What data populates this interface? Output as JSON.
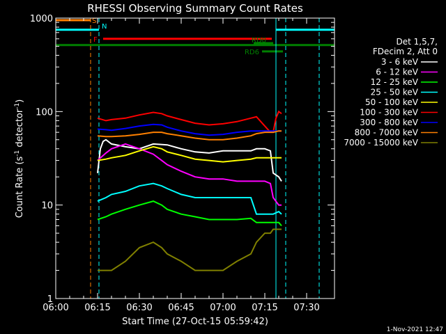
{
  "chart_data": {
    "type": "line",
    "title": "RHESSI Observing Summary Count Rates",
    "xlabel": "Start Time (27-Oct-15 05:59:42)",
    "ylabel_prefix": "Count Rate (s",
    "ylabel_sup1": "-1",
    "ylabel_mid": " detector",
    "ylabel_sup2": "-1",
    "ylabel_suffix": ")",
    "y_scale": "log",
    "ylim": [
      1,
      1000
    ],
    "xlim_minutes": [
      0,
      100
    ],
    "x_ticks": [
      {
        "m": 0,
        "label": "06:00"
      },
      {
        "m": 15,
        "label": "06:15"
      },
      {
        "m": 30,
        "label": "06:30"
      },
      {
        "m": 45,
        "label": "06:45"
      },
      {
        "m": 60,
        "label": "07:00"
      },
      {
        "m": 75,
        "label": "07:15"
      },
      {
        "m": 90,
        "label": "07:30"
      }
    ],
    "y_ticks": [
      {
        "v": 1,
        "label": "1"
      },
      {
        "v": 10,
        "label": "10"
      },
      {
        "v": 100,
        "label": "100"
      },
      {
        "v": 1000,
        "label": "1000"
      }
    ],
    "legend_header": [
      "Det 1,5,7,",
      "FDecim 2, Att 0"
    ],
    "legend_position": "right",
    "series": [
      {
        "name": "3 - 6 keV",
        "color": "#ffffff",
        "x": [
          15,
          16,
          17,
          18,
          20,
          25,
          30,
          35,
          40,
          45,
          50,
          55,
          60,
          65,
          70,
          72,
          75,
          77,
          78,
          80,
          81
        ],
        "y": [
          22,
          40,
          48,
          50,
          45,
          42,
          40,
          45,
          44,
          40,
          37,
          36,
          38,
          38,
          38,
          40,
          40,
          38,
          22,
          20,
          18
        ]
      },
      {
        "name": "6 - 12 keV",
        "color": "#ff00ff",
        "x": [
          15,
          18,
          20,
          25,
          30,
          35,
          38,
          40,
          45,
          50,
          55,
          60,
          65,
          70,
          72,
          75,
          77,
          78,
          80,
          81
        ],
        "y": [
          30,
          36,
          40,
          45,
          40,
          35,
          30,
          27,
          23,
          20,
          19,
          19,
          18,
          18,
          18,
          18,
          17,
          12,
          10,
          10
        ]
      },
      {
        "name": "12 - 25 keV",
        "color": "#00ff00",
        "x": [
          15,
          18,
          20,
          25,
          30,
          35,
          38,
          40,
          45,
          50,
          55,
          60,
          65,
          70,
          72,
          75,
          77,
          78,
          80,
          81
        ],
        "y": [
          7,
          7.5,
          8,
          9,
          10,
          11,
          10,
          9,
          8,
          7.5,
          7,
          7,
          7,
          7.2,
          6.5,
          6.5,
          6.5,
          6.5,
          6.5,
          6
        ]
      },
      {
        "name": "25 - 50 keV",
        "color": "#00ffff",
        "x": [
          15,
          18,
          20,
          25,
          30,
          35,
          38,
          40,
          45,
          50,
          55,
          60,
          65,
          70,
          72,
          75,
          77,
          78,
          80,
          81
        ],
        "y": [
          11,
          12,
          13,
          14,
          16,
          17,
          16,
          15,
          13,
          12,
          12,
          12,
          12,
          12,
          8,
          8,
          8,
          8,
          8.5,
          8
        ]
      },
      {
        "name": "50 - 100 keV",
        "color": "#ffff00",
        "x": [
          15,
          18,
          20,
          25,
          30,
          35,
          38,
          40,
          45,
          50,
          55,
          60,
          65,
          70,
          72,
          75,
          77,
          78,
          80,
          81
        ],
        "y": [
          30,
          31,
          32,
          34,
          38,
          42,
          40,
          37,
          34,
          31,
          30,
          29,
          30,
          31,
          32,
          32,
          32,
          32,
          32,
          32
        ]
      },
      {
        "name": "100 - 300 keV",
        "color": "#ff0000",
        "x": [
          15,
          18,
          20,
          25,
          30,
          35,
          38,
          40,
          45,
          50,
          55,
          60,
          65,
          70,
          72,
          77,
          78,
          79,
          80,
          81
        ],
        "y": [
          85,
          80,
          82,
          85,
          92,
          98,
          95,
          90,
          82,
          75,
          72,
          74,
          78,
          85,
          88,
          60,
          60,
          85,
          100,
          95
        ]
      },
      {
        "name": "300 - 800 keV",
        "color": "#0000ff",
        "x": [
          15,
          18,
          20,
          25,
          30,
          35,
          38,
          40,
          45,
          50,
          55,
          60,
          65,
          70,
          72,
          75,
          77,
          78,
          80,
          81
        ],
        "y": [
          65,
          64,
          63,
          66,
          70,
          73,
          72,
          68,
          62,
          58,
          56,
          57,
          60,
          62,
          62,
          62,
          62,
          62,
          62,
          62
        ]
      },
      {
        "name": "800 - 7000 keV",
        "color": "#ff8000",
        "x": [
          15,
          18,
          20,
          25,
          30,
          35,
          38,
          40,
          45,
          50,
          55,
          60,
          65,
          70,
          72,
          75,
          77,
          78,
          80,
          81
        ],
        "y": [
          55,
          54,
          54,
          55,
          57,
          60,
          60,
          58,
          55,
          52,
          50,
          50,
          52,
          55,
          58,
          60,
          60,
          60,
          62,
          62
        ]
      },
      {
        "name": "7000 - 15000 keV",
        "color": "#808000",
        "x": [
          15,
          18,
          20,
          25,
          30,
          35,
          38,
          40,
          45,
          50,
          55,
          60,
          65,
          70,
          72,
          75,
          77,
          78,
          80,
          81
        ],
        "y": [
          2,
          2,
          2,
          2.5,
          3.5,
          4,
          3.5,
          3,
          2.5,
          2,
          2,
          2,
          2.5,
          3,
          4,
          5,
          5,
          5.5,
          5.5,
          5.5
        ]
      }
    ],
    "vertical_lines": [
      {
        "m": 12.5,
        "color": "#ff8000",
        "style": "dashed"
      },
      {
        "m": 15.5,
        "color": "#00ffff",
        "style": "dashed"
      },
      {
        "m": 0,
        "color": "#00ffff",
        "style": "solid"
      },
      {
        "m": 79,
        "color": "#00ffff",
        "style": "solid"
      },
      {
        "m": 82.5,
        "color": "#00ffff",
        "style": "dashed"
      },
      {
        "m": 94.5,
        "color": "#00ffff",
        "style": "dashed"
      }
    ],
    "flag_bars": [
      {
        "label": "S",
        "color": "#ff8000",
        "x0": 0,
        "x1": 12.5,
        "y": 950
      },
      {
        "label": "N",
        "color": "#00ffff",
        "x0": 0,
        "x1": 15.5,
        "y": 750
      },
      {
        "label": "",
        "color": "#00ffff",
        "x0": 79,
        "x1": 100,
        "y": 750
      },
      {
        "label": "F",
        "color": "#ff0000",
        "x0": 17,
        "x1": 77.5,
        "y": 600
      },
      {
        "label": "",
        "color": "#008000",
        "x0": 0,
        "x1": 100,
        "y": 515
      },
      {
        "label": "RD0",
        "color": "#008000",
        "x0": 71,
        "x1": 78,
        "y": 540
      },
      {
        "label": "RD6",
        "color": "#008000",
        "x0": 74,
        "x1": 81.5,
        "y": 440
      }
    ],
    "footer_date": "1-Nov-2021 12:47"
  }
}
